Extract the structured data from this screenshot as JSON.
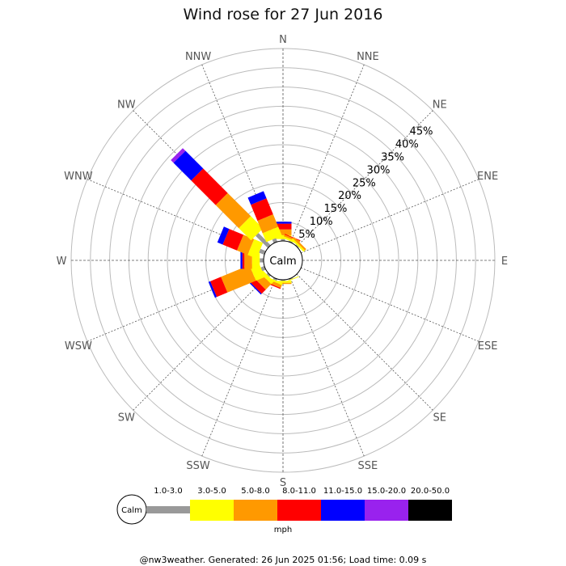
{
  "title": "Wind rose for 27 Jun 2016",
  "footer": "@nw3weather. Generated: 26 Jun 2025 01:56; Load time: 0.09 s",
  "calm_label": "Calm",
  "legend": {
    "calm_label": "Calm",
    "unit": "mph"
  },
  "chart_data": {
    "type": "windrose",
    "title": "Wind rose for 27 Jun 2016",
    "directions": [
      "N",
      "NNE",
      "NE",
      "ENE",
      "E",
      "ESE",
      "SE",
      "SSE",
      "S",
      "SSW",
      "SW",
      "WSW",
      "W",
      "WNW",
      "NW",
      "NNW"
    ],
    "radial_ticks": [
      "5%",
      "10%",
      "15%",
      "20%",
      "25%",
      "30%",
      "35%",
      "40%",
      "45%"
    ],
    "radial_max": 50,
    "speed_bins": [
      {
        "label": "1.0-3.0",
        "color": "#999999"
      },
      {
        "label": "3.0-5.0",
        "color": "#ffff00"
      },
      {
        "label": "5.0-8.0",
        "color": "#ff9900"
      },
      {
        "label": "8.0-11.0",
        "color": "#ff0000"
      },
      {
        "label": "11.0-15.0",
        "color": "#0000ff"
      },
      {
        "label": "15.0-20.0",
        "color": "#9922ee"
      },
      {
        "label": "20.0-50.0",
        "color": "#000000"
      }
    ],
    "unit": "mph",
    "series": [
      {
        "direction": "N",
        "values": [
          0.5,
          1.0,
          1.5,
          1.5,
          0.5,
          0,
          0
        ]
      },
      {
        "direction": "NNE",
        "values": [
          0.3,
          0.5,
          0.5,
          0.2,
          0,
          0,
          0
        ]
      },
      {
        "direction": "NE",
        "values": [
          0.3,
          0.5,
          0.5,
          0,
          0,
          0,
          0
        ]
      },
      {
        "direction": "ENE",
        "values": [
          0,
          0,
          0,
          0,
          0,
          0,
          0
        ]
      },
      {
        "direction": "E",
        "values": [
          0,
          0,
          0,
          0,
          0,
          0,
          0
        ]
      },
      {
        "direction": "ESE",
        "values": [
          0,
          0,
          0,
          0,
          0,
          0,
          0
        ]
      },
      {
        "direction": "SE",
        "values": [
          0,
          0,
          0,
          0,
          0,
          0,
          0
        ]
      },
      {
        "direction": "SSE",
        "values": [
          0.3,
          0.2,
          0,
          0,
          0,
          0,
          0
        ]
      },
      {
        "direction": "S",
        "values": [
          0.3,
          0.5,
          0.3,
          0,
          0,
          0,
          0
        ]
      },
      {
        "direction": "SSW",
        "values": [
          0.5,
          0.5,
          0.8,
          0.3,
          0,
          0,
          0
        ]
      },
      {
        "direction": "SW",
        "values": [
          0.5,
          1.0,
          2.0,
          1.5,
          0.3,
          0,
          0
        ]
      },
      {
        "direction": "WSW",
        "values": [
          1.0,
          2.5,
          8.0,
          3.0,
          0.5,
          0,
          0
        ]
      },
      {
        "direction": "W",
        "values": [
          1.0,
          2.0,
          2.0,
          0.5,
          0.5,
          0,
          0
        ]
      },
      {
        "direction": "WNW",
        "values": [
          1.5,
          2.5,
          3.0,
          4.0,
          1.5,
          0,
          0
        ]
      },
      {
        "direction": "NW",
        "values": [
          4.5,
          4.5,
          8.5,
          9.0,
          6.5,
          1.0,
          0
        ]
      },
      {
        "direction": "NNW",
        "values": [
          1.0,
          2.5,
          3.5,
          4.5,
          2.0,
          0,
          0
        ]
      }
    ]
  }
}
